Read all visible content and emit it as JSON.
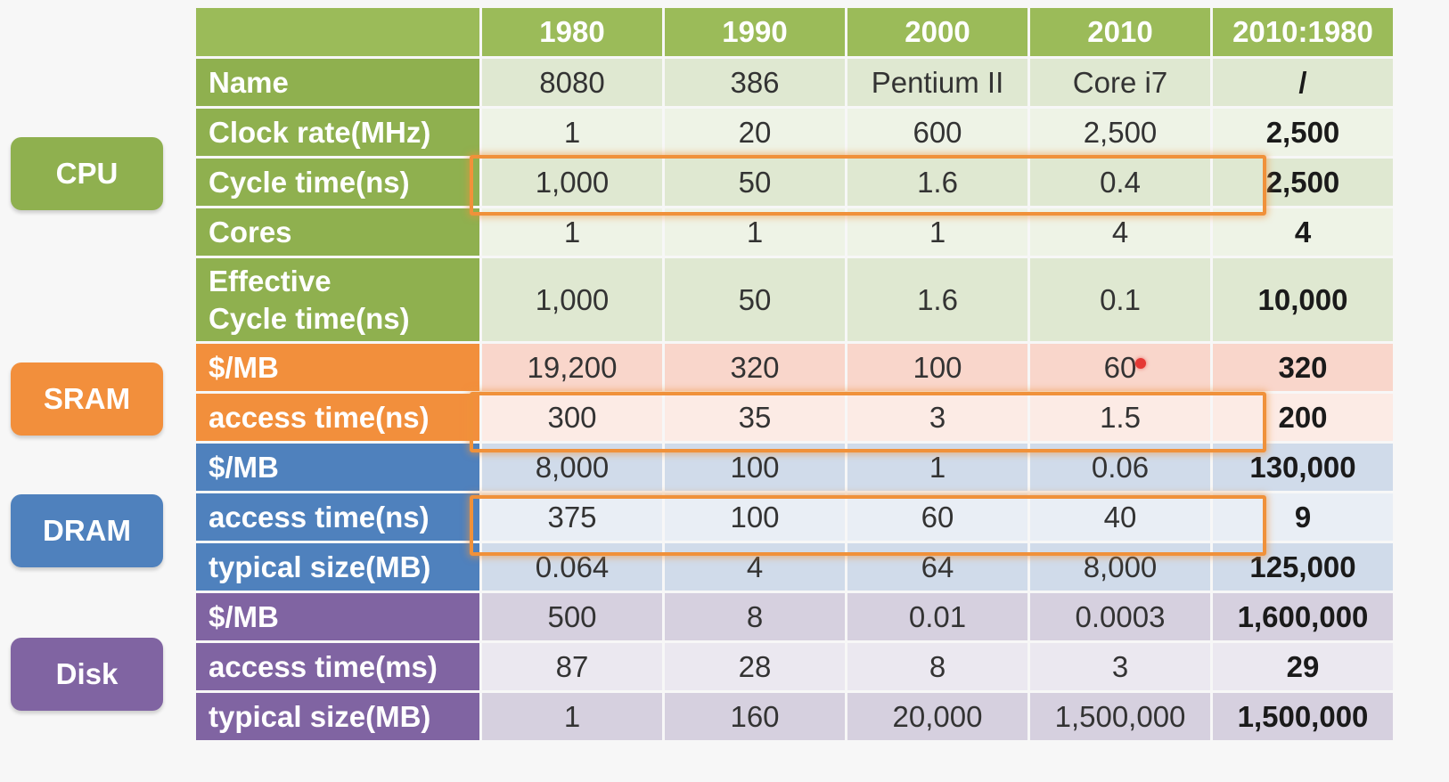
{
  "categories": {
    "cpu": "CPU",
    "sram": "SRAM",
    "dram": "DRAM",
    "disk": "Disk"
  },
  "header": [
    "",
    "1980",
    "1990",
    "2000",
    "2010",
    "2010:1980"
  ],
  "rows": {
    "cpu_name": {
      "label": "Name",
      "values": [
        "8080",
        "386",
        "Pentium II",
        "Core i7",
        "/"
      ]
    },
    "cpu_clock": {
      "label": "Clock rate(MHz)",
      "values": [
        "1",
        "20",
        "600",
        "2,500",
        "2,500"
      ]
    },
    "cpu_cycle": {
      "label": "Cycle time(ns)",
      "values": [
        "1,000",
        "50",
        "1.6",
        "0.4",
        "2,500"
      ]
    },
    "cpu_cores": {
      "label": "Cores",
      "values": [
        "1",
        "1",
        "1",
        "4",
        "4"
      ]
    },
    "cpu_eff": {
      "label_line1": "Effective",
      "label_line2": "Cycle time(ns)",
      "values": [
        "1,000",
        "50",
        "1.6",
        "0.1",
        "10,000"
      ]
    },
    "sram_cost": {
      "label": "$/MB",
      "values": [
        "19,200",
        "320",
        "100",
        "60",
        "320"
      ]
    },
    "sram_access": {
      "label": "access time(ns)",
      "values": [
        "300",
        "35",
        "3",
        "1.5",
        "200"
      ]
    },
    "dram_cost": {
      "label": "$/MB",
      "values": [
        "8,000",
        "100",
        "1",
        "0.06",
        "130,000"
      ]
    },
    "dram_access": {
      "label": "access time(ns)",
      "values": [
        "375",
        "100",
        "60",
        "40",
        "9"
      ]
    },
    "dram_size": {
      "label": "typical size(MB)",
      "values": [
        "0.064",
        "4",
        "64",
        "8,000",
        "125,000"
      ]
    },
    "disk_cost": {
      "label": "$/MB",
      "values": [
        "500",
        "8",
        "0.01",
        "0.0003",
        "1,600,000"
      ]
    },
    "disk_access": {
      "label": "access time(ms)",
      "values": [
        "87",
        "28",
        "8",
        "3",
        "29"
      ]
    },
    "disk_size": {
      "label": "typical size(MB)",
      "values": [
        "1",
        "160",
        "20,000",
        "1,500,000",
        "1,500,000"
      ]
    }
  },
  "colors": {
    "cpu": "#8fb04f",
    "sram": "#f28f3c",
    "dram": "#4f81bd",
    "disk": "#8064a2",
    "highlight": "#f0913a"
  }
}
